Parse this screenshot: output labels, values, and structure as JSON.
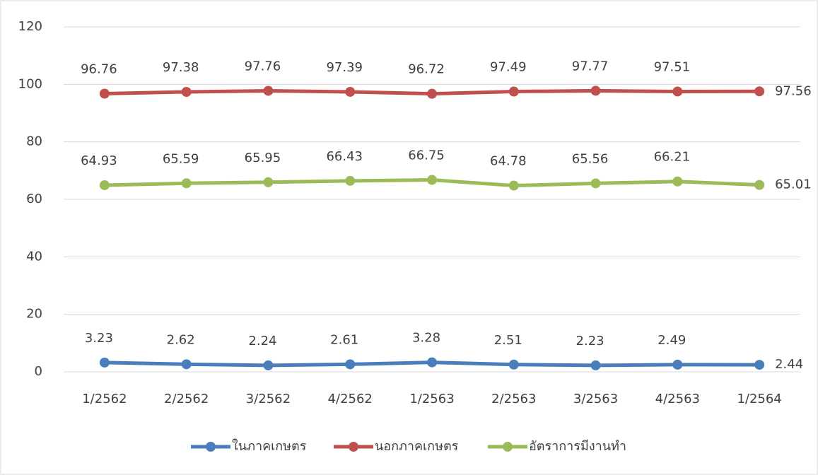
{
  "chart_data": {
    "type": "line",
    "categories": [
      "1/2562",
      "2/2562",
      "3/2562",
      "4/2562",
      "1/2563",
      "2/2563",
      "3/2563",
      "4/2563",
      "1/2564"
    ],
    "series": [
      {
        "name": "ในภาคเกษตร",
        "color": "#4a7ebb",
        "values": [
          3.23,
          2.62,
          2.24,
          2.61,
          3.28,
          2.51,
          2.23,
          2.49,
          2.44
        ]
      },
      {
        "name": "นอกภาคเกษตร",
        "color": "#c0504d",
        "values": [
          96.76,
          97.38,
          97.76,
          97.39,
          96.72,
          97.49,
          97.77,
          97.51,
          97.56
        ]
      },
      {
        "name": "อัตราการมีงานทำ",
        "color": "#9bbb59",
        "values": [
          64.93,
          65.59,
          65.95,
          66.43,
          66.75,
          64.78,
          65.56,
          66.21,
          65.01
        ]
      }
    ],
    "ylim": [
      0,
      120
    ],
    "yticks": [
      0,
      20,
      40,
      60,
      80,
      100,
      120
    ],
    "grid": true,
    "legend": "bottom"
  }
}
